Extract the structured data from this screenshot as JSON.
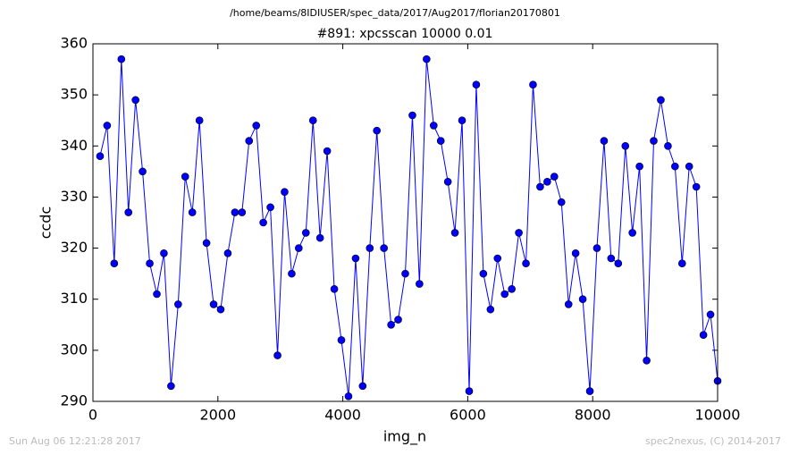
{
  "chart_data": {
    "type": "line",
    "suptitle": "/home/beams/8IDIUSER/spec_data/2017/Aug2017/florian20170801",
    "title": "#891: xpcsscan 10000 0.01",
    "xlabel": "img_n",
    "ylabel": "ccdc",
    "footnotes": [
      "Sun Aug 06 12:21:28 2017",
      "spec2nexus, (C) 2014-2017"
    ],
    "x": [
      114,
      227,
      341,
      455,
      568,
      682,
      795,
      909,
      1023,
      1136,
      1250,
      1364,
      1477,
      1591,
      1705,
      1818,
      1932,
      2045,
      2159,
      2273,
      2386,
      2500,
      2614,
      2727,
      2841,
      2955,
      3068,
      3182,
      3295,
      3409,
      3523,
      3636,
      3750,
      3864,
      3977,
      4091,
      4205,
      4318,
      4432,
      4545,
      4659,
      4773,
      4886,
      5000,
      5114,
      5227,
      5341,
      5455,
      5568,
      5682,
      5795,
      5909,
      6023,
      6136,
      6250,
      6364,
      6477,
      6591,
      6705,
      6818,
      6932,
      7045,
      7159,
      7273,
      7386,
      7500,
      7614,
      7727,
      7841,
      7955,
      8068,
      8182,
      8295,
      8409,
      8523,
      8636,
      8750,
      8864,
      8977,
      9091,
      9205,
      9318,
      9432,
      9545,
      9659,
      9773,
      9886,
      10000
    ],
    "series": [
      {
        "name": "ccdc",
        "color": "#0000ff",
        "values": [
          338,
          344,
          317,
          357,
          327,
          349,
          335,
          317,
          311,
          319,
          293,
          309,
          334,
          327,
          345,
          321,
          309,
          308,
          319,
          327,
          327,
          341,
          344,
          325,
          328,
          299,
          331,
          315,
          320,
          323,
          345,
          322,
          339,
          312,
          302,
          291,
          318,
          293,
          320,
          343,
          320,
          305,
          306,
          315,
          346,
          313,
          357,
          344,
          341,
          333,
          323,
          345,
          292,
          352,
          315,
          308,
          318,
          311,
          312,
          323,
          317,
          352,
          332,
          333,
          334,
          329,
          309,
          319,
          310,
          292,
          320,
          341,
          318,
          317,
          340,
          323,
          336,
          298,
          341,
          349,
          340,
          336,
          317,
          336,
          332,
          303,
          307,
          294
        ]
      }
    ],
    "xlim": [
      0,
      10000
    ],
    "xticks": [
      0,
      2000,
      4000,
      6000,
      8000,
      10000
    ],
    "ylim": [
      290,
      360
    ],
    "yticks": [
      290,
      300,
      310,
      320,
      330,
      340,
      350,
      360
    ],
    "grid": false
  }
}
